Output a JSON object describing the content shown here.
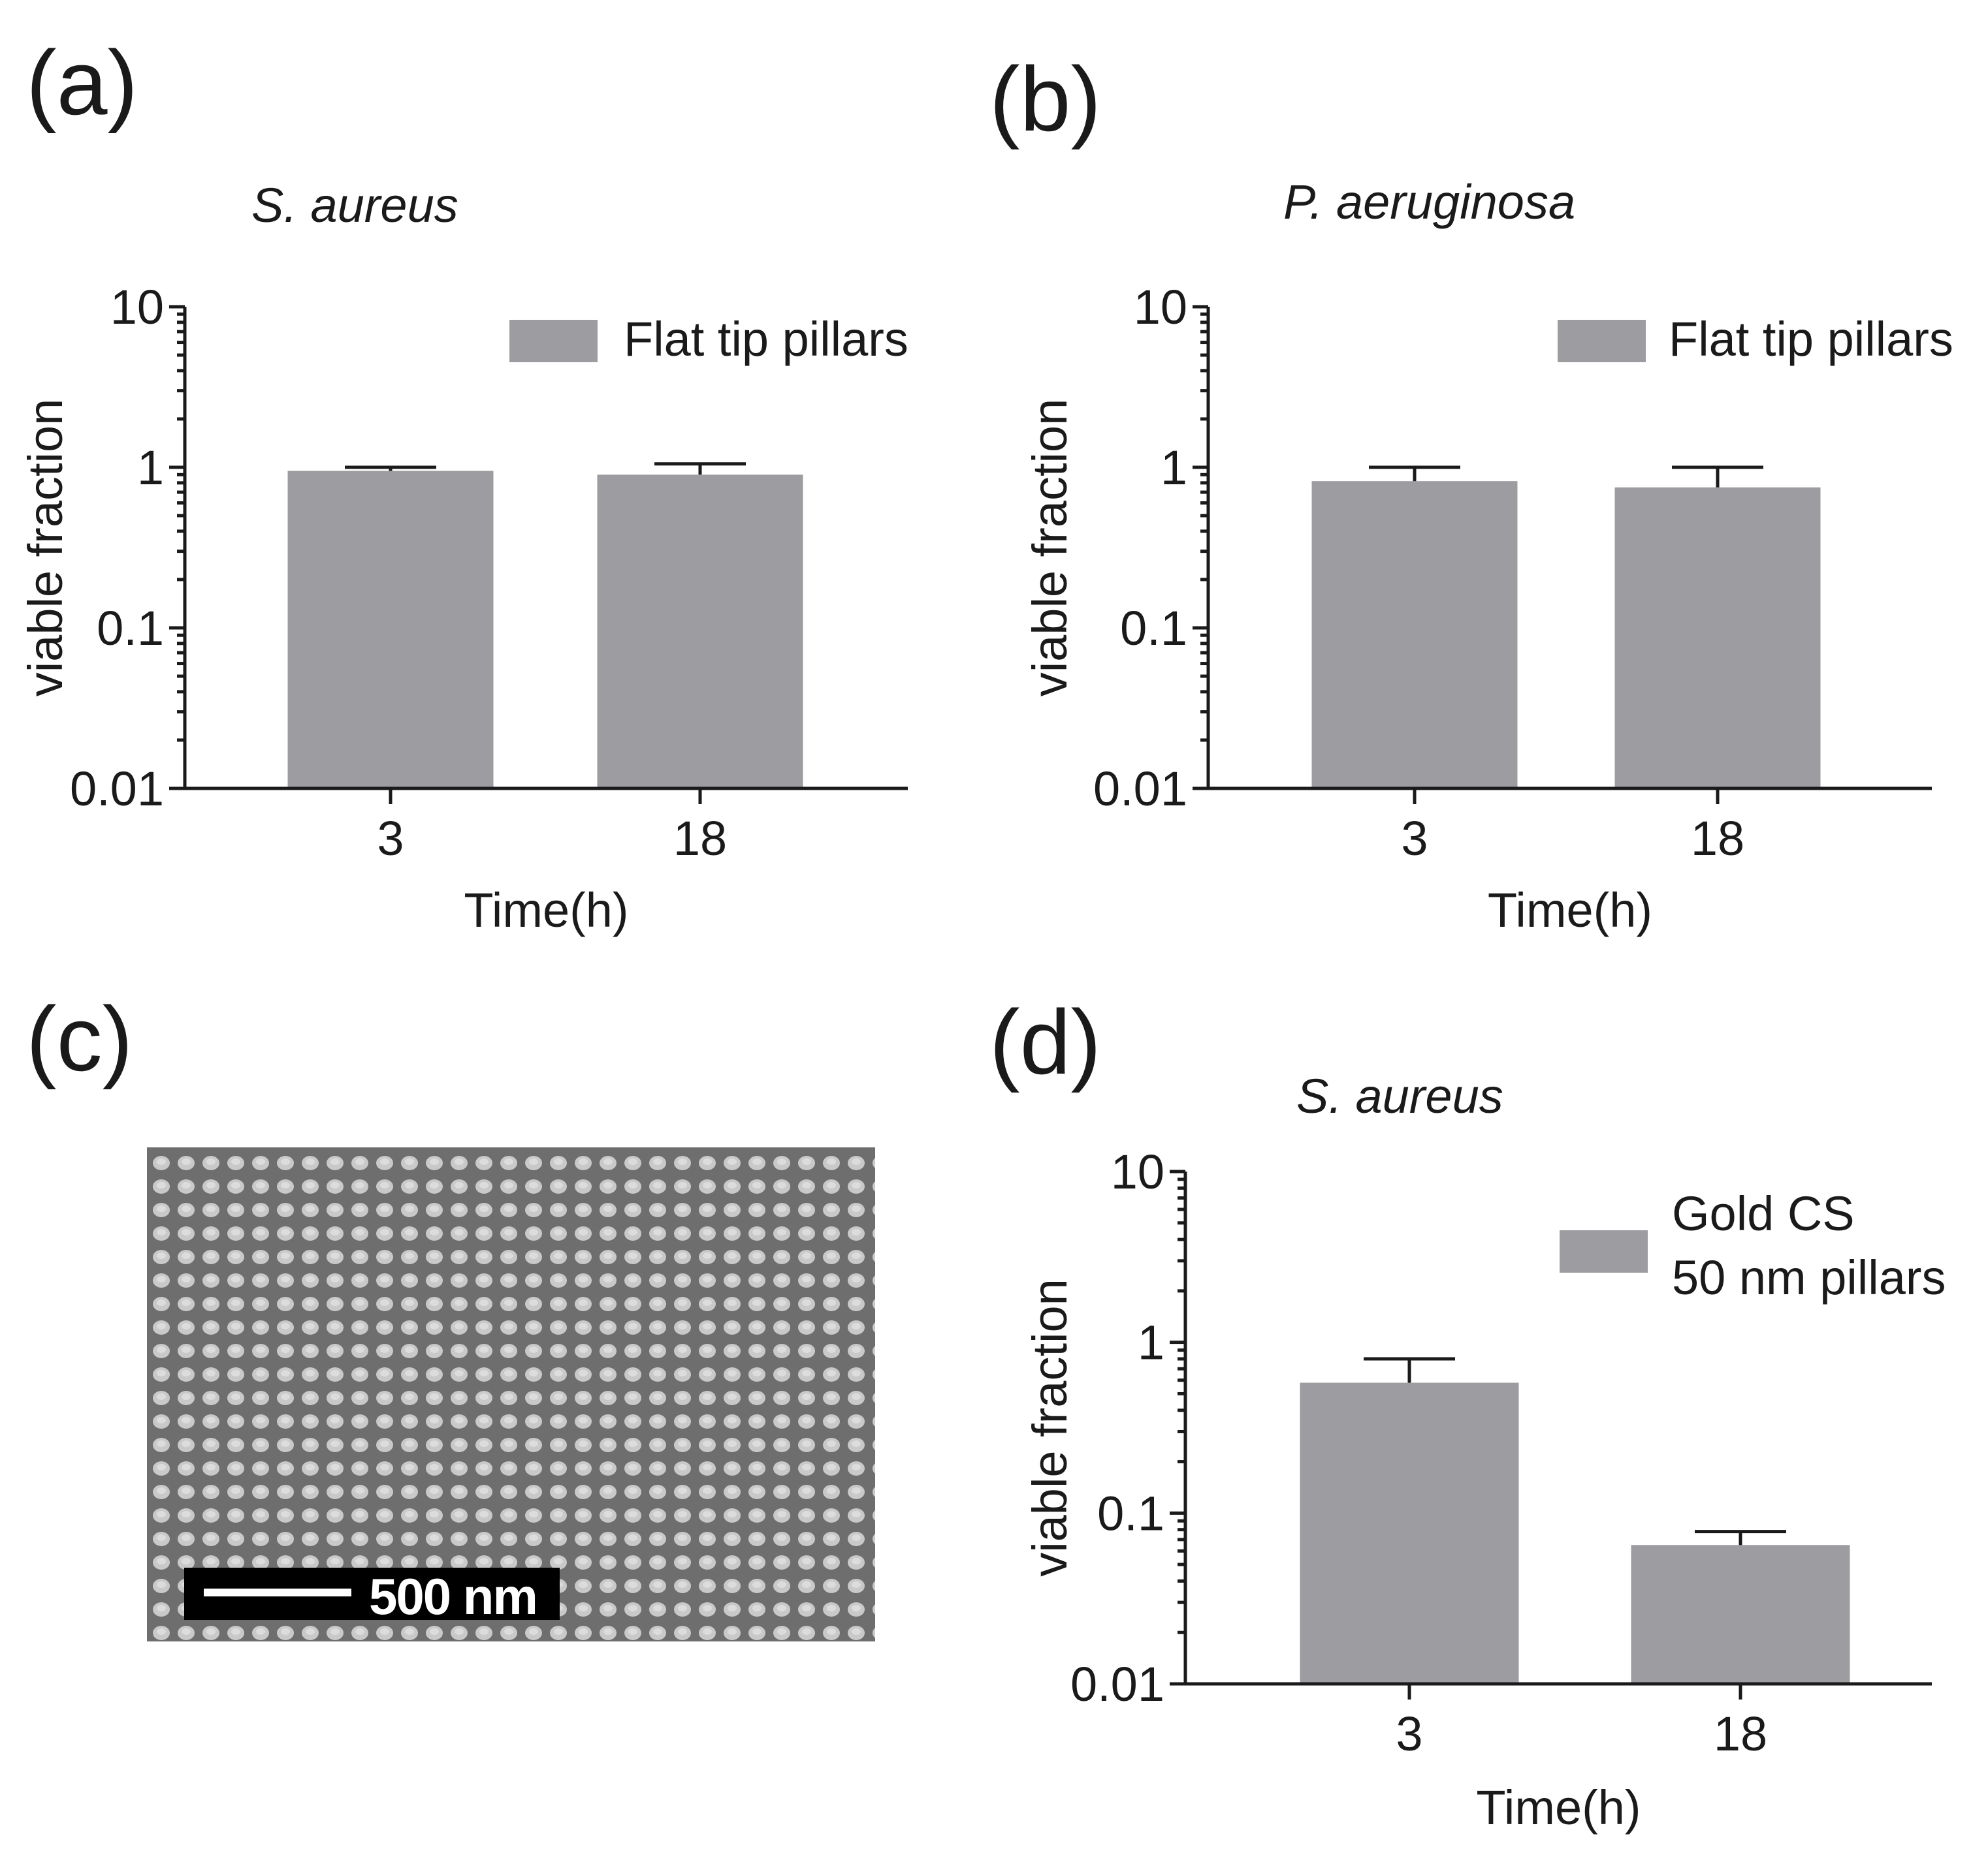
{
  "panels": {
    "a": "(a)",
    "b": "(b)",
    "c": "(c)",
    "d": "(d)"
  },
  "micrograph": {
    "scale_bar_label": "500 nm"
  },
  "colors": {
    "bar": "#9d9ca1",
    "axis": "#1a1a1a",
    "micrograph_bg": "#6e6e6e",
    "micrograph_dot": "#c9c9c9",
    "scale_bar_bg": "#000000",
    "scale_bar_fg": "#ffffff"
  },
  "chart_data": [
    {
      "id": "a",
      "type": "bar",
      "title": "S. aureus",
      "xlabel": "Time(h)",
      "ylabel": "viable fraction",
      "yscale": "log",
      "ylim": [
        0.01,
        10
      ],
      "yticks": [
        0.01,
        0.1,
        1,
        10
      ],
      "ytick_labels": [
        "0.01",
        "0.1",
        "1",
        "10"
      ],
      "categories": [
        "3",
        "18"
      ],
      "legend": [
        "Flat tip pillars"
      ],
      "series": [
        {
          "name": "Flat tip pillars",
          "values": [
            0.95,
            0.9
          ],
          "error_upper": [
            1.0,
            1.05
          ]
        }
      ]
    },
    {
      "id": "b",
      "type": "bar",
      "title": "P. aeruginosa",
      "xlabel": "Time(h)",
      "ylabel": "viable fraction",
      "yscale": "log",
      "ylim": [
        0.01,
        10
      ],
      "yticks": [
        0.01,
        0.1,
        1,
        10
      ],
      "ytick_labels": [
        "0.01",
        "0.1",
        "1",
        "10"
      ],
      "categories": [
        "3",
        "18"
      ],
      "legend": [
        "Flat tip pillars"
      ],
      "series": [
        {
          "name": "Flat tip pillars",
          "values": [
            0.82,
            0.75
          ],
          "error_upper": [
            1.0,
            1.0
          ]
        }
      ]
    },
    {
      "id": "d",
      "type": "bar",
      "title": "S. aureus",
      "xlabel": "Time(h)",
      "ylabel": "viable fraction",
      "yscale": "log",
      "ylim": [
        0.01,
        10
      ],
      "yticks": [
        0.01,
        0.1,
        1,
        10
      ],
      "ytick_labels": [
        "0.01",
        "0.1",
        "1",
        "10"
      ],
      "categories": [
        "3",
        "18"
      ],
      "legend": [
        "Gold CS",
        "50 nm pillars"
      ],
      "series": [
        {
          "name": "Gold CS 50 nm pillars",
          "values": [
            0.58,
            0.065
          ],
          "error_upper": [
            0.8,
            0.078
          ]
        }
      ]
    }
  ]
}
